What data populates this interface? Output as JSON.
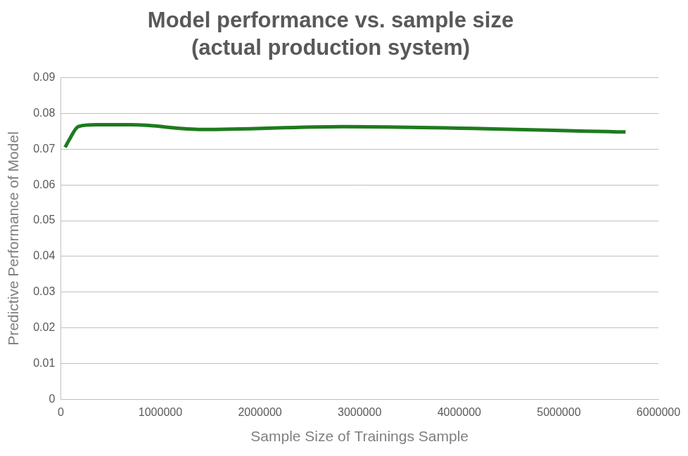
{
  "chart_data": {
    "type": "line",
    "title": "Model performance vs. sample size",
    "subtitle": "(actual production system)",
    "x_label": "Sample Size of Trainings Sample",
    "y_label": "Predictive Performance of Model",
    "x": [
      44000,
      89000,
      177000,
      354000,
      709000,
      1418000,
      2835000,
      5670000
    ],
    "values": [
      0.0705,
      0.0728,
      0.0763,
      0.0768,
      0.0768,
      0.0755,
      0.0763,
      0.0748
    ],
    "color": "#1e7b1e",
    "xlim": [
      0,
      6000000
    ],
    "xticks": [
      0,
      1000000,
      2000000,
      3000000,
      4000000,
      5000000,
      6000000
    ],
    "ylim": [
      0,
      0.09
    ],
    "yticks": [
      0,
      0.01,
      0.02,
      0.03,
      0.04,
      0.05,
      0.06,
      0.07,
      0.08,
      0.09
    ],
    "grid": true
  }
}
